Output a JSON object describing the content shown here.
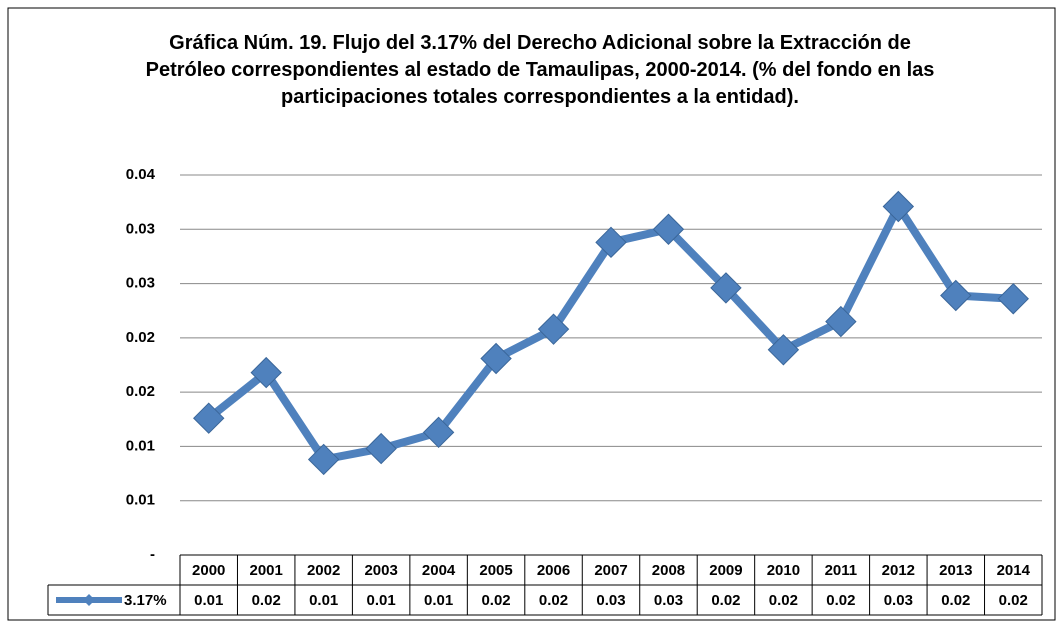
{
  "chart_data": {
    "type": "line",
    "title": "Gráfica Núm. 19. Flujo del 3.17% del Derecho Adicional sobre la Extracción de Petróleo correspondientes al estado de Tamaulipas, 2000-2014. (% del fondo en las participaciones totales correspondientes a la entidad).",
    "categories": [
      "2000",
      "2001",
      "2002",
      "2003",
      "2004",
      "2005",
      "2006",
      "2007",
      "2008",
      "2009",
      "2010",
      "2011",
      "2012",
      "2013",
      "2014"
    ],
    "series": [
      {
        "name": "3.17%",
        "color": "#4f81bd",
        "values": [
          0.0126,
          0.0168,
          0.0088,
          0.0098,
          0.0113,
          0.0181,
          0.0208,
          0.0288,
          0.03,
          0.0246,
          0.0189,
          0.0215,
          0.0321,
          0.0239,
          0.0236
        ],
        "value_labels": [
          "0.01",
          "0.02",
          "0.01",
          "0.01",
          "0.01",
          "0.02",
          "0.02",
          "0.03",
          "0.03",
          "0.02",
          "0.02",
          "0.02",
          "0.03",
          "0.02",
          "0.02"
        ]
      }
    ],
    "ylim": [
      0,
      0.035
    ],
    "yticks": [
      {
        "value": 0,
        "label": "-"
      },
      {
        "value": 0.005,
        "label": "0.01"
      },
      {
        "value": 0.01,
        "label": "0.01"
      },
      {
        "value": 0.015,
        "label": "0.02"
      },
      {
        "value": 0.02,
        "label": "0.02"
      },
      {
        "value": 0.025,
        "label": "0.03"
      },
      {
        "value": 0.03,
        "label": "0.03"
      },
      {
        "value": 0.035,
        "label": "0.04"
      }
    ],
    "grid": true
  }
}
